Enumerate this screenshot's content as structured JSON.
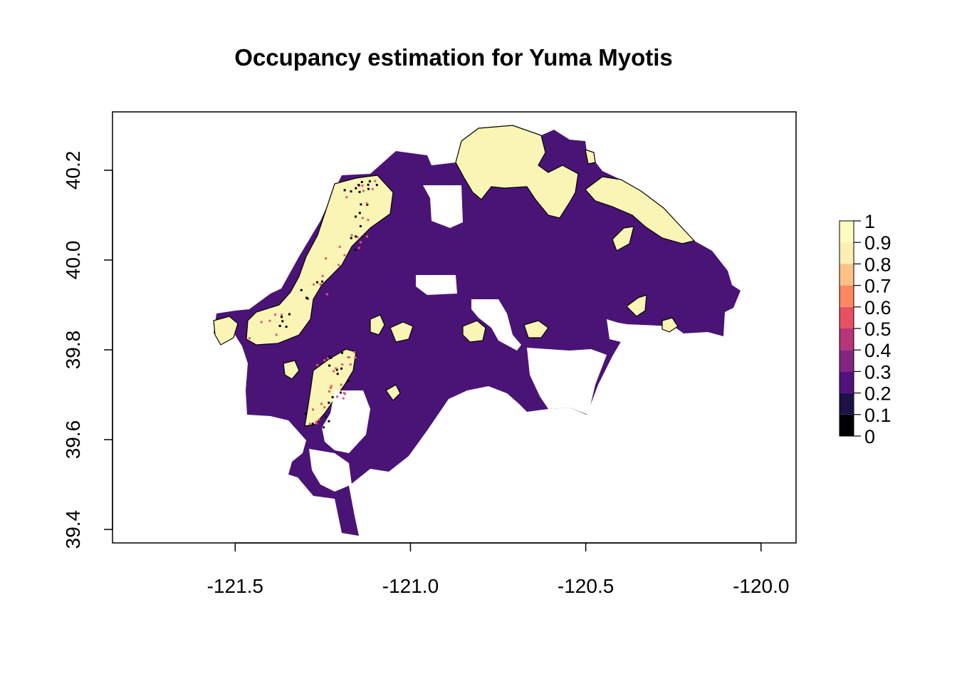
{
  "chart_data": {
    "type": "heatmap",
    "title": "Occupancy estimation for Yuma Myotis",
    "xlabel": "",
    "ylabel": "",
    "xlim": [
      -121.85,
      -119.9
    ],
    "ylim": [
      39.37,
      40.33
    ],
    "x_ticks": [
      -121.5,
      -121.0,
      -120.5,
      -120.0
    ],
    "x_tick_labels": [
      "-121.5",
      "-121.0",
      "-120.5",
      "-120.0"
    ],
    "y_ticks": [
      39.4,
      39.6,
      39.8,
      40.0,
      40.2
    ],
    "y_tick_labels": [
      "39.4",
      "39.6",
      "39.8",
      "40.0",
      "40.2"
    ],
    "legend": {
      "position": "right",
      "breaks": [
        0,
        0.1,
        0.2,
        0.3,
        0.4,
        0.5,
        0.6,
        0.7,
        0.8,
        0.9,
        1
      ],
      "labels": [
        "0",
        "0.1",
        "0.2",
        "0.3",
        "0.4",
        "0.5",
        "0.6",
        "0.7",
        "0.8",
        "0.9",
        "1"
      ],
      "colors": [
        "#000004",
        "#1D1147",
        "#51127C",
        "#822681",
        "#B63679",
        "#E65164",
        "#FB8861",
        "#FEC287",
        "#FCEFB1",
        "#FCFDBF"
      ]
    },
    "colors": {
      "low_occupancy": "#4A1477",
      "high_occupancy": "#FBF5B5",
      "mid_occupancy": "#E8576A",
      "edge": "#000004",
      "no_data": "#FFFFFF"
    }
  }
}
